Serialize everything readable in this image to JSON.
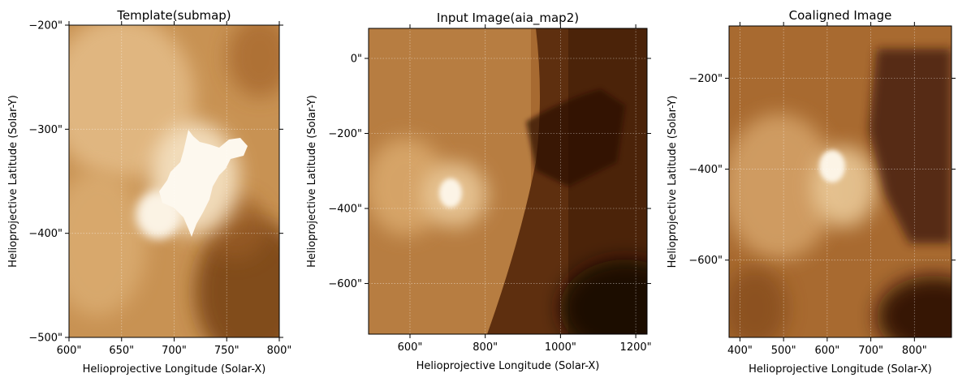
{
  "chart_data": [
    {
      "type": "heatmap",
      "title": "Template(submap)",
      "xlabel": "Helioprojective Longitude (Solar-X)",
      "ylabel": "Helioprojective Latitude (Solar-Y)",
      "colormap": "sdoaia171-copper",
      "grid": true,
      "xlim": [
        600,
        800
      ],
      "ylim": [
        -500,
        -200
      ],
      "x_ticks": [
        "600\"",
        "650\"",
        "700\"",
        "750\"",
        "800\""
      ],
      "y_ticks": [
        "-200\"",
        "-300\"",
        "-400\"",
        "-500\""
      ],
      "x_tick_values": [
        600,
        650,
        700,
        750,
        800
      ],
      "y_tick_values": [
        -200,
        -300,
        -400,
        -500
      ],
      "y_tick_side": "left"
    },
    {
      "type": "heatmap",
      "title": "Input Image(aia_map2)",
      "xlabel": "Helioprojective Longitude (Solar-X)",
      "ylabel": "Helioprojective Latitude (Solar-Y)",
      "colormap": "sdoaia171-copper",
      "grid": true,
      "xlim": [
        490,
        1230
      ],
      "ylim": [
        -735,
        80
      ],
      "x_ticks": [
        "600\"",
        "800\"",
        "1000\"",
        "1200\""
      ],
      "y_ticks": [
        "0\"",
        "-200\"",
        "-400\"",
        "-600\""
      ],
      "x_tick_values": [
        600,
        800,
        1000,
        1200
      ],
      "y_tick_values": [
        0,
        -200,
        -400,
        -600
      ],
      "y_tick_side": "left"
    },
    {
      "type": "heatmap",
      "title": "Coaligned Image",
      "xlabel": "Helioprojective Longitude (Solar-X)",
      "ylabel": "Helioprojective Latitude (Solar-Y)",
      "colormap": "sdoaia171-copper",
      "grid": true,
      "xlim": [
        375,
        885
      ],
      "ylim": [
        -770,
        -85
      ],
      "x_ticks": [
        "400\"",
        "500\"",
        "600\"",
        "700\"",
        "800\""
      ],
      "y_ticks": [
        "-200\"",
        "-400\"",
        "-600\""
      ],
      "x_tick_values": [
        400,
        500,
        600,
        700,
        800
      ],
      "y_tick_values": [
        -200,
        -400,
        -600
      ],
      "y_tick_side": "left"
    }
  ]
}
